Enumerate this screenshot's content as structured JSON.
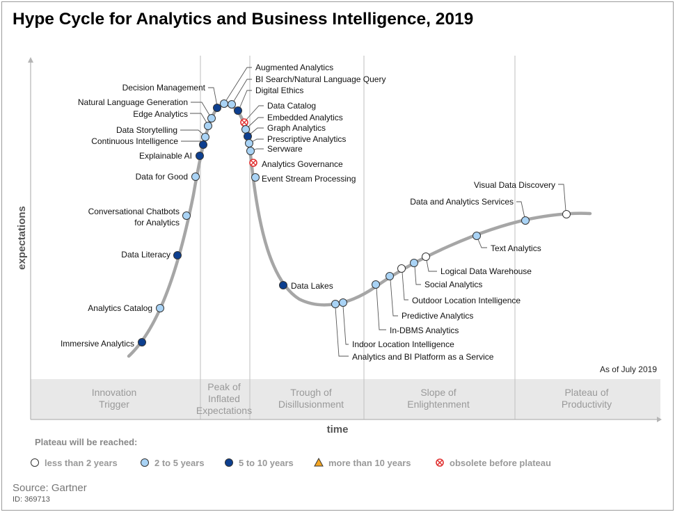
{
  "title": "Hype Cycle for Analytics and Business Intelligence, 2019",
  "as_of": "As of July 2019",
  "axis": {
    "y_label": "expectations",
    "x_label": "time"
  },
  "phases": [
    {
      "lines": [
        "Innovation",
        "Trigger"
      ]
    },
    {
      "lines": [
        "Peak of",
        "Inflated",
        "Expectations"
      ]
    },
    {
      "lines": [
        "Trough of",
        "Disillusionment"
      ]
    },
    {
      "lines": [
        "Slope of",
        "Enlightenment"
      ]
    },
    {
      "lines": [
        "Plateau of",
        "Productivity"
      ]
    }
  ],
  "legend": {
    "title": "Plateau will be reached:",
    "items": [
      {
        "key": "lt2",
        "label": "less than 2 years",
        "color": "#ffffff"
      },
      {
        "key": "2to5",
        "label": "2 to 5 years",
        "color": "#a9d3f5"
      },
      {
        "key": "5to10",
        "label": "5 to 10 years",
        "color": "#0d3f8f"
      },
      {
        "key": "gt10",
        "label": "more than 10 years",
        "color": "#f5a623"
      },
      {
        "key": "obs",
        "label": "obsolete before plateau",
        "color": "#e03030"
      }
    ]
  },
  "colors": {
    "curve": "#a6a6a6",
    "band": "#e8e8e8",
    "divider": "#c8c8c8",
    "phase_text": "#999999",
    "marker_stroke": "#333333"
  },
  "technologies": [
    {
      "name": "Immersive Analytics",
      "cat": "5to10"
    },
    {
      "name": "Analytics Catalog",
      "cat": "2to5"
    },
    {
      "name": "Data Literacy",
      "cat": "5to10"
    },
    {
      "name": "Conversational Chatbots for Analytics",
      "cat": "2to5"
    },
    {
      "name": "Data for Good",
      "cat": "2to5"
    },
    {
      "name": "Explainable AI",
      "cat": "5to10"
    },
    {
      "name": "Continuous Intelligence",
      "cat": "5to10"
    },
    {
      "name": "Data Storytelling",
      "cat": "2to5"
    },
    {
      "name": "Edge Analytics",
      "cat": "2to5"
    },
    {
      "name": "Natural Language Generation",
      "cat": "2to5"
    },
    {
      "name": "Decision Management",
      "cat": "5to10"
    },
    {
      "name": "Augmented Analytics",
      "cat": "2to5"
    },
    {
      "name": "BI Search/Natural Language Query",
      "cat": "2to5"
    },
    {
      "name": "Digital Ethics",
      "cat": "5to10"
    },
    {
      "name": "Data Catalog",
      "cat": "obs"
    },
    {
      "name": "Embedded Analytics",
      "cat": "2to5"
    },
    {
      "name": "Graph Analytics",
      "cat": "5to10"
    },
    {
      "name": "Prescriptive Analytics",
      "cat": "2to5"
    },
    {
      "name": "Servware",
      "cat": "2to5"
    },
    {
      "name": "Analytics Governance",
      "cat": "obs"
    },
    {
      "name": "Event Stream Processing",
      "cat": "2to5"
    },
    {
      "name": "Data Lakes",
      "cat": "5to10"
    },
    {
      "name": "Analytics and BI Platform as a Service",
      "cat": "2to5"
    },
    {
      "name": "Indoor Location Intelligence",
      "cat": "2to5"
    },
    {
      "name": "In-DBMS Analytics",
      "cat": "2to5"
    },
    {
      "name": "Predictive Analytics",
      "cat": "2to5"
    },
    {
      "name": "Outdoor Location Intelligence",
      "cat": "lt2"
    },
    {
      "name": "Social Analytics",
      "cat": "2to5"
    },
    {
      "name": "Logical Data Warehouse",
      "cat": "lt2"
    },
    {
      "name": "Text Analytics",
      "cat": "2to5"
    },
    {
      "name": "Data and Analytics Services",
      "cat": "2to5"
    },
    {
      "name": "Visual Data Discovery",
      "cat": "lt2"
    }
  ],
  "footer": {
    "source": "Source: Gartner",
    "id": "ID: 369713"
  }
}
